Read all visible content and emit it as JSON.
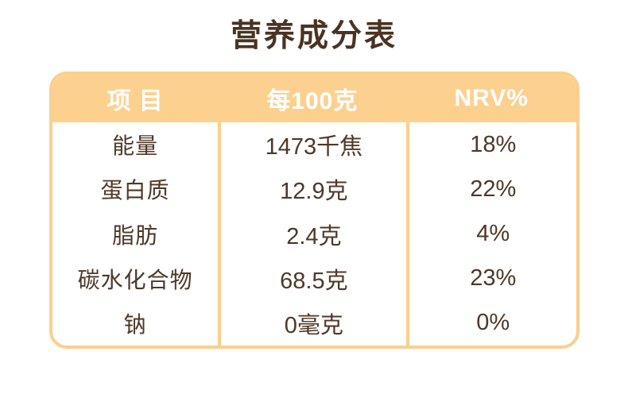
{
  "title": "营养成分表",
  "colors": {
    "title_text": "#4a3322",
    "table_border": "#fbcf8d",
    "header_bg": "#fcd190",
    "header_text": "#ffffff",
    "body_text": "#4d3828",
    "background": "#ffffff"
  },
  "table": {
    "headers": [
      "项 目",
      "每100克",
      "NRV%"
    ],
    "rows": [
      {
        "item": "能量",
        "per100g": "1473千焦",
        "nrv": "18%"
      },
      {
        "item": "蛋白质",
        "per100g": "12.9克",
        "nrv": "22%"
      },
      {
        "item": "脂肪",
        "per100g": "2.4克",
        "nrv": "4%"
      },
      {
        "item": "碳水化合物",
        "per100g": "68.5克",
        "nrv": "23%"
      },
      {
        "item": "钠",
        "per100g": "0毫克",
        "nrv": "0%"
      }
    ]
  }
}
